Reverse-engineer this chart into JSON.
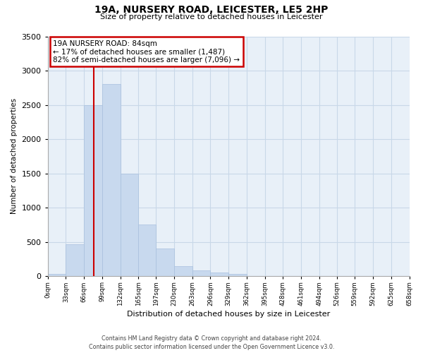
{
  "title1": "19A, NURSERY ROAD, LEICESTER, LE5 2HP",
  "title2": "Size of property relative to detached houses in Leicester",
  "xlabel": "Distribution of detached houses by size in Leicester",
  "ylabel": "Number of detached properties",
  "bar_values": [
    30,
    470,
    2500,
    2800,
    1500,
    750,
    400,
    150,
    80,
    50,
    30,
    0,
    0,
    0,
    0,
    0,
    0,
    0,
    0,
    0
  ],
  "bin_edges": [
    0,
    33,
    66,
    99,
    132,
    165,
    197,
    230,
    263,
    296,
    329,
    362,
    395,
    428,
    461,
    494,
    526,
    559,
    592,
    625,
    658
  ],
  "tick_labels": [
    "0sqm",
    "33sqm",
    "66sqm",
    "99sqm",
    "132sqm",
    "165sqm",
    "197sqm",
    "230sqm",
    "263sqm",
    "296sqm",
    "329sqm",
    "362sqm",
    "395sqm",
    "428sqm",
    "461sqm",
    "494sqm",
    "526sqm",
    "559sqm",
    "592sqm",
    "625sqm",
    "658sqm"
  ],
  "bar_color": "#c8d9ee",
  "bar_edge_color": "#a8c0de",
  "redline_x": 84,
  "annotation_title": "19A NURSERY ROAD: 84sqm",
  "annotation_line1": "← 17% of detached houses are smaller (1,487)",
  "annotation_line2": "82% of semi-detached houses are larger (7,096) →",
  "annotation_box_color": "#ffffff",
  "annotation_border_color": "#cc0000",
  "redline_color": "#cc0000",
  "ylim": [
    0,
    3500
  ],
  "yticks": [
    0,
    500,
    1000,
    1500,
    2000,
    2500,
    3000,
    3500
  ],
  "grid_color": "#c8d8e8",
  "footer1": "Contains HM Land Registry data © Crown copyright and database right 2024.",
  "footer2": "Contains public sector information licensed under the Open Government Licence v3.0.",
  "bg_color": "#ffffff",
  "plot_bg_color": "#e8f0f8"
}
